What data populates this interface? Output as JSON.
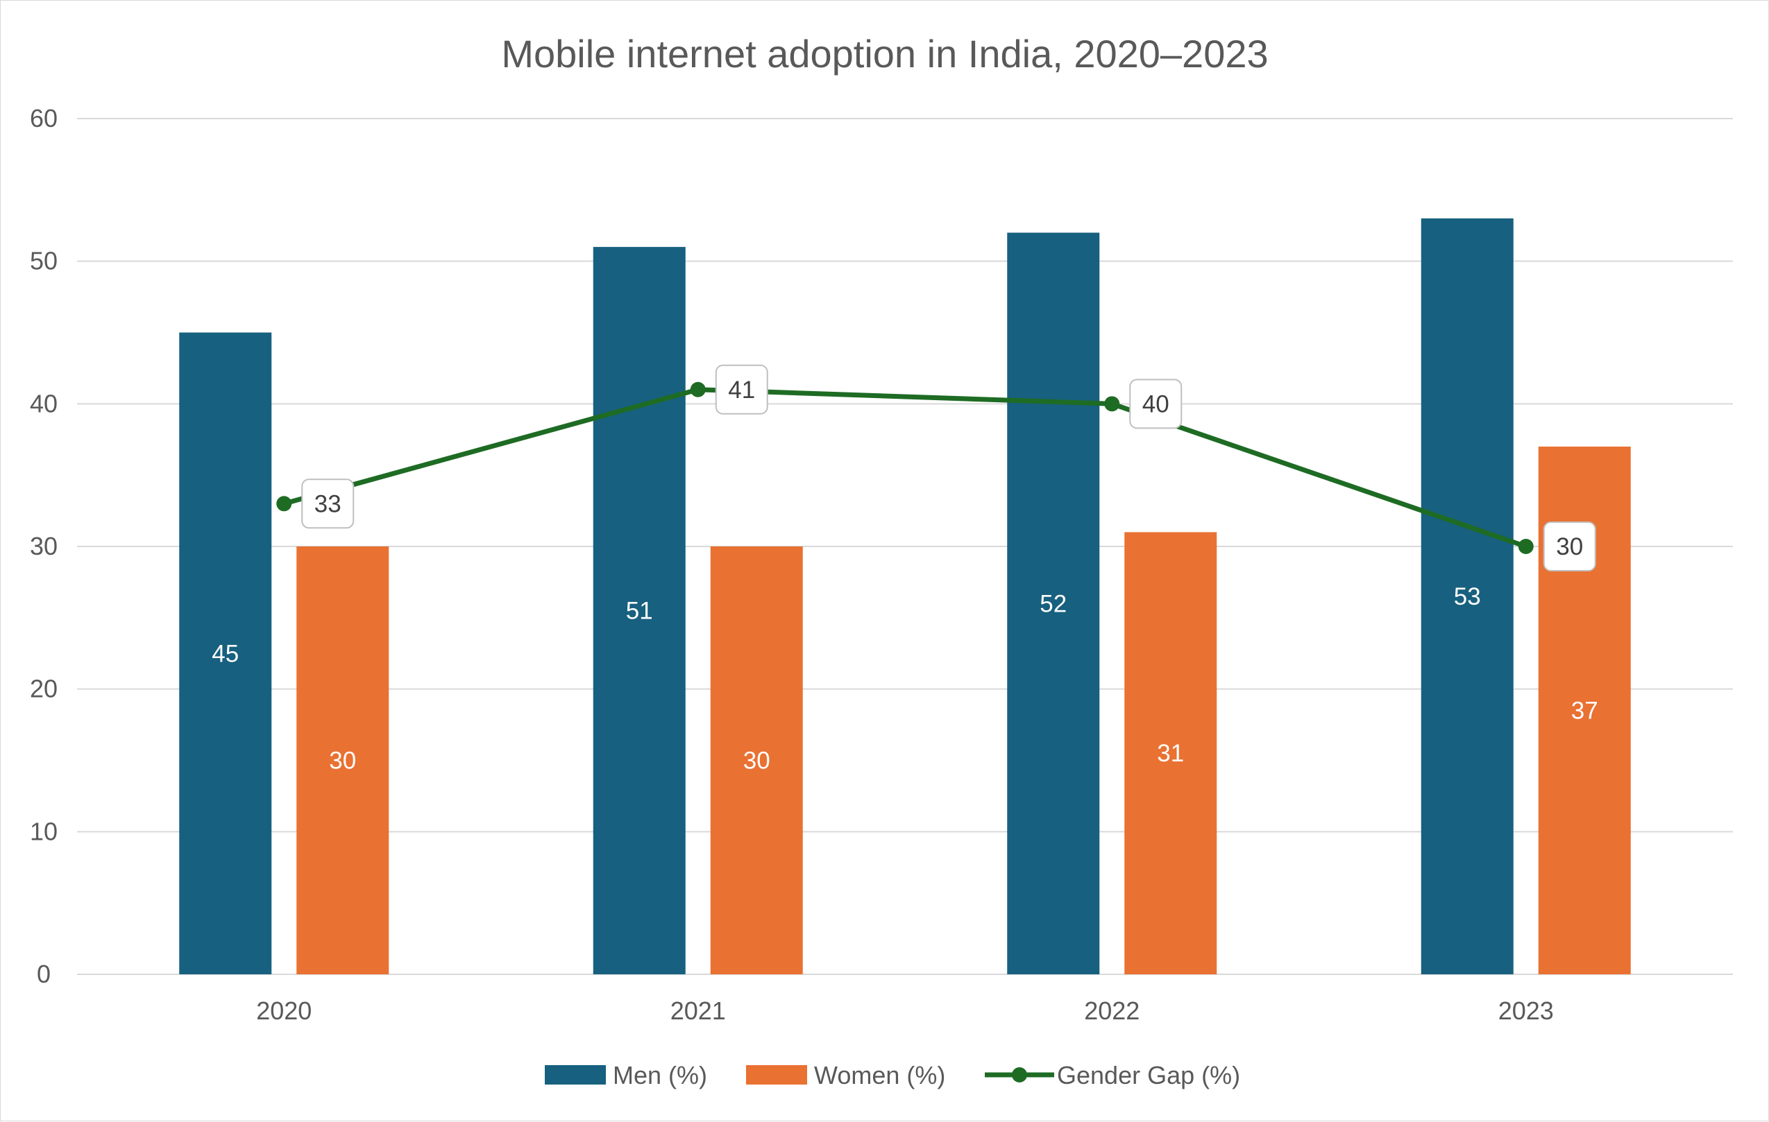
{
  "chart_data": {
    "type": "bar",
    "title": "Mobile internet adoption in India, 2020–2023",
    "categories": [
      "2020",
      "2021",
      "2022",
      "2023"
    ],
    "ylim": [
      0,
      60
    ],
    "yticks": [
      0,
      10,
      20,
      30,
      40,
      50,
      60
    ],
    "grid": true,
    "legend_position": "bottom",
    "series": [
      {
        "name": "Men (%)",
        "kind": "bar",
        "color": "#17607f",
        "values": [
          45,
          51,
          52,
          53
        ]
      },
      {
        "name": "Women (%)",
        "kind": "bar",
        "color": "#e97132",
        "values": [
          30,
          30,
          31,
          37
        ]
      },
      {
        "name": "Gender Gap (%)",
        "kind": "line",
        "color": "#1e6b24",
        "values": [
          33,
          41,
          40,
          30
        ]
      }
    ],
    "xlabel": "",
    "ylabel": ""
  }
}
